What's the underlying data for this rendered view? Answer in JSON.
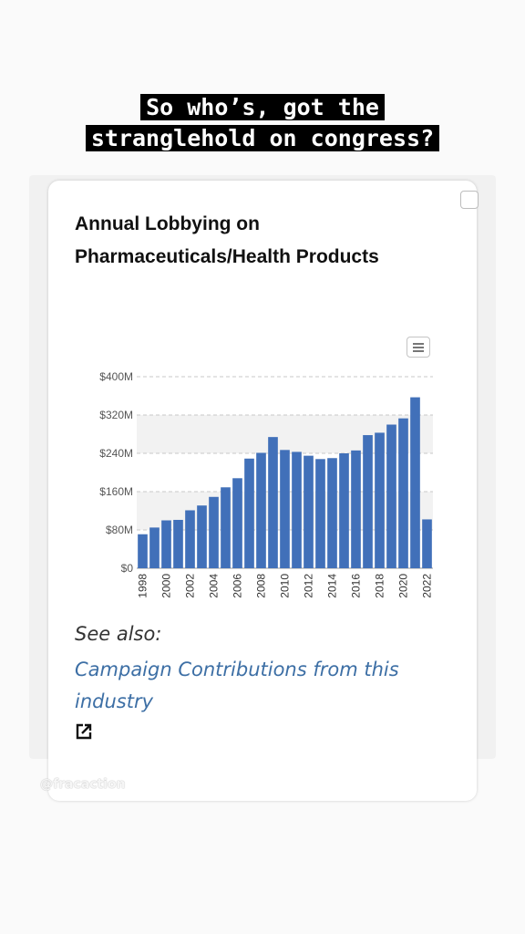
{
  "caption": {
    "line1": "So who’s, got the",
    "line2": "stranglehold on congress?"
  },
  "card": {
    "title": "Annual Lobbying on Pharmaceuticals/Health Products",
    "see_also_label": "See also:",
    "link_text": "Campaign Contributions from this industry",
    "menu_icon": "hamburger-menu-icon",
    "external_link_icon": "external-link-icon"
  },
  "watermark": "@fracaction",
  "colors": {
    "bar": "#4170b9",
    "band": "#f2f2f2",
    "link": "#3d6fa5"
  },
  "chart_data": {
    "type": "bar",
    "title": "Annual Lobbying on Pharmaceuticals/Health Products",
    "categories": [
      "1998",
      "1999",
      "2000",
      "2001",
      "2002",
      "2003",
      "2004",
      "2005",
      "2006",
      "2007",
      "2008",
      "2009",
      "2010",
      "2011",
      "2012",
      "2013",
      "2014",
      "2015",
      "2016",
      "2017",
      "2018",
      "2019",
      "2020",
      "2021",
      "2022"
    ],
    "x_tick_labels": [
      "1998",
      "2000",
      "2002",
      "2004",
      "2006",
      "2008",
      "2010",
      "2012",
      "2014",
      "2016",
      "2018",
      "2020",
      "2022"
    ],
    "values": [
      71,
      85,
      100,
      101,
      121,
      131,
      149,
      169,
      188,
      229,
      241,
      274,
      247,
      243,
      235,
      228,
      230,
      240,
      246,
      278,
      283,
      300,
      313,
      357,
      102
    ],
    "y_tick_labels": [
      "$0",
      "$80M",
      "$160M",
      "$240M",
      "$320M",
      "$400M"
    ],
    "y_ticks": [
      0,
      80,
      160,
      240,
      320,
      400
    ],
    "ylim": [
      0,
      400
    ],
    "unit": "million USD",
    "grid": true,
    "xlabel": "",
    "ylabel": ""
  }
}
